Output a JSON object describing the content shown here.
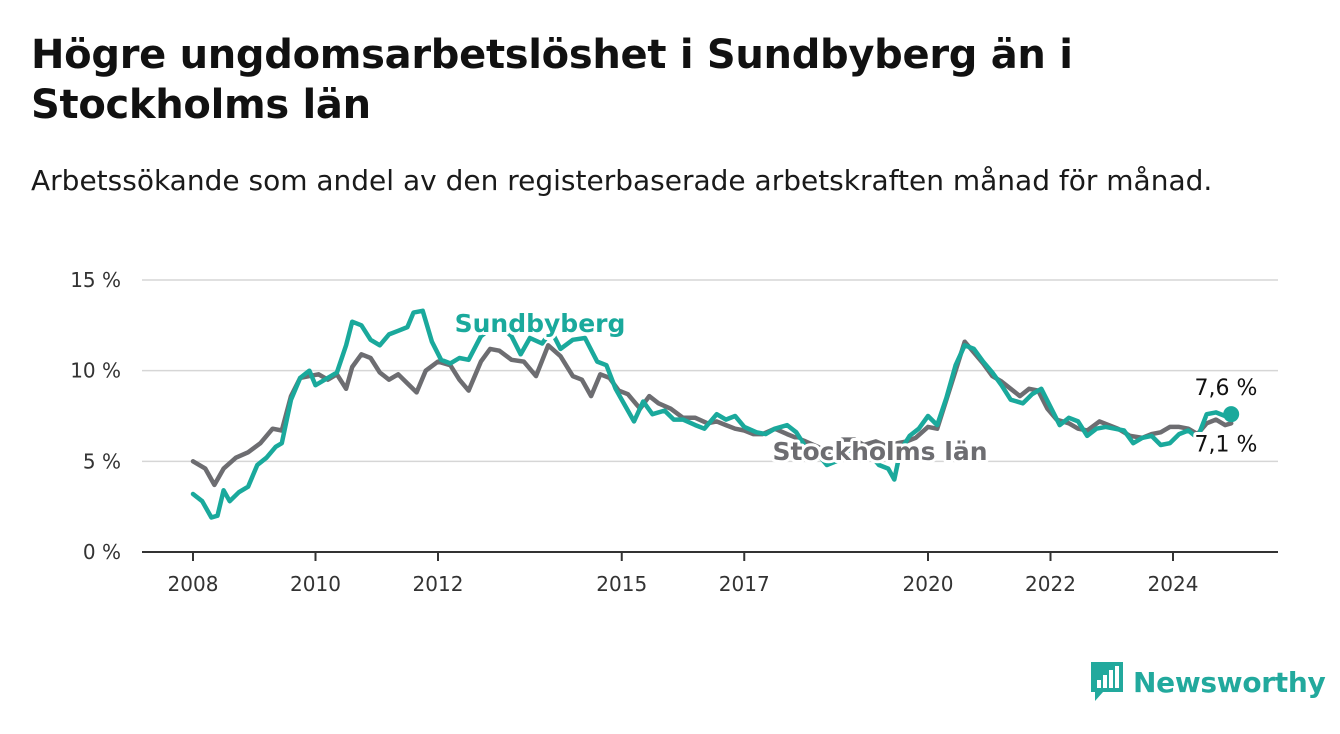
{
  "title": "Högre ungdomsarbetslöshet i Sundbyberg än i Stockholms län",
  "subtitle": "Arbetssökande som andel av den registerbaserade arbetskraften månad för månad.",
  "brand": {
    "name": "Newsworthy",
    "icon": "newsworthy-logo-icon"
  },
  "colors": {
    "sundbyberg": "#1aa99c",
    "stockholm": "#6d6d71",
    "grid": "#d6d6d6",
    "axis": "#333333"
  },
  "chart_data": {
    "type": "line",
    "title": "Högre ungdomsarbetslöshet i Sundbyberg än i Stockholms län",
    "subtitle": "Arbetssökande som andel av den registerbaserade arbetskraften månad för månad.",
    "xlabel": "",
    "ylabel": "",
    "xlim": [
      2008,
      2025.25
    ],
    "ylim": [
      0,
      15
    ],
    "x_ticks": [
      {
        "value": 2008,
        "label": "2008"
      },
      {
        "value": 2010,
        "label": "2010"
      },
      {
        "value": 2012,
        "label": "2012"
      },
      {
        "value": 2015,
        "label": "2015"
      },
      {
        "value": 2017,
        "label": "2017"
      },
      {
        "value": 2020,
        "label": "2020"
      },
      {
        "value": 2022,
        "label": "2022"
      },
      {
        "value": 2024,
        "label": "2024"
      }
    ],
    "y_ticks": [
      {
        "value": 0,
        "label": "0 %"
      },
      {
        "value": 5,
        "label": "5 %"
      },
      {
        "value": 10,
        "label": "10 %"
      },
      {
        "value": 15,
        "label": "15 %"
      }
    ],
    "grid": true,
    "legend": "inline labels",
    "series": [
      {
        "name": "Sundbyberg",
        "color": "#1aa99c",
        "end_label": "7,6 %",
        "points": [
          [
            2008.0,
            3.2
          ],
          [
            2008.15,
            2.8
          ],
          [
            2008.3,
            1.9
          ],
          [
            2008.4,
            2.0
          ],
          [
            2008.5,
            3.4
          ],
          [
            2008.6,
            2.8
          ],
          [
            2008.75,
            3.3
          ],
          [
            2008.9,
            3.6
          ],
          [
            2009.05,
            4.8
          ],
          [
            2009.2,
            5.2
          ],
          [
            2009.35,
            5.8
          ],
          [
            2009.45,
            6.0
          ],
          [
            2009.6,
            8.4
          ],
          [
            2009.75,
            9.6
          ],
          [
            2009.9,
            10.0
          ],
          [
            2010.0,
            9.2
          ],
          [
            2010.2,
            9.6
          ],
          [
            2010.35,
            9.9
          ],
          [
            2010.5,
            11.4
          ],
          [
            2010.6,
            12.7
          ],
          [
            2010.75,
            12.5
          ],
          [
            2010.9,
            11.7
          ],
          [
            2011.05,
            11.4
          ],
          [
            2011.2,
            12.0
          ],
          [
            2011.35,
            12.2
          ],
          [
            2011.5,
            12.4
          ],
          [
            2011.6,
            13.2
          ],
          [
            2011.75,
            13.3
          ],
          [
            2011.9,
            11.6
          ],
          [
            2012.05,
            10.6
          ],
          [
            2012.2,
            10.4
          ],
          [
            2012.35,
            10.7
          ],
          [
            2012.5,
            10.6
          ],
          [
            2012.7,
            11.9
          ],
          [
            2012.85,
            12.3
          ],
          [
            2013.0,
            12.5
          ],
          [
            2013.2,
            11.9
          ],
          [
            2013.35,
            10.9
          ],
          [
            2013.5,
            11.8
          ],
          [
            2013.7,
            11.5
          ],
          [
            2013.85,
            12.2
          ],
          [
            2014.0,
            11.2
          ],
          [
            2014.2,
            11.7
          ],
          [
            2014.4,
            11.8
          ],
          [
            2014.6,
            10.5
          ],
          [
            2014.75,
            10.3
          ],
          [
            2014.9,
            9.0
          ],
          [
            2015.05,
            8.1
          ],
          [
            2015.2,
            7.2
          ],
          [
            2015.35,
            8.3
          ],
          [
            2015.5,
            7.6
          ],
          [
            2015.7,
            7.8
          ],
          [
            2015.85,
            7.3
          ],
          [
            2016.0,
            7.3
          ],
          [
            2016.2,
            7.0
          ],
          [
            2016.35,
            6.8
          ],
          [
            2016.55,
            7.6
          ],
          [
            2016.7,
            7.3
          ],
          [
            2016.85,
            7.5
          ],
          [
            2017.0,
            6.9
          ],
          [
            2017.2,
            6.6
          ],
          [
            2017.35,
            6.5
          ],
          [
            2017.5,
            6.8
          ],
          [
            2017.7,
            7.0
          ],
          [
            2017.85,
            6.6
          ],
          [
            2018.0,
            5.8
          ],
          [
            2018.2,
            5.4
          ],
          [
            2018.35,
            4.8
          ],
          [
            2018.5,
            5.0
          ],
          [
            2018.7,
            5.6
          ],
          [
            2018.9,
            5.8
          ],
          [
            2019.05,
            5.4
          ],
          [
            2019.2,
            4.8
          ],
          [
            2019.35,
            4.6
          ],
          [
            2019.45,
            4.0
          ],
          [
            2019.55,
            5.6
          ],
          [
            2019.7,
            6.4
          ],
          [
            2019.85,
            6.8
          ],
          [
            2020.0,
            7.5
          ],
          [
            2020.15,
            7.0
          ],
          [
            2020.3,
            8.5
          ],
          [
            2020.45,
            10.3
          ],
          [
            2020.6,
            11.4
          ],
          [
            2020.75,
            11.2
          ],
          [
            2020.9,
            10.5
          ],
          [
            2021.05,
            9.9
          ],
          [
            2021.2,
            9.2
          ],
          [
            2021.35,
            8.4
          ],
          [
            2021.55,
            8.2
          ],
          [
            2021.7,
            8.7
          ],
          [
            2021.85,
            9.0
          ],
          [
            2022.0,
            8.0
          ],
          [
            2022.15,
            7.0
          ],
          [
            2022.3,
            7.4
          ],
          [
            2022.45,
            7.2
          ],
          [
            2022.6,
            6.4
          ],
          [
            2022.75,
            6.8
          ],
          [
            2022.9,
            6.9
          ],
          [
            2023.05,
            6.8
          ],
          [
            2023.2,
            6.7
          ],
          [
            2023.35,
            6.0
          ],
          [
            2023.5,
            6.3
          ],
          [
            2023.65,
            6.4
          ],
          [
            2023.8,
            5.9
          ],
          [
            2023.95,
            6.0
          ],
          [
            2024.1,
            6.5
          ],
          [
            2024.25,
            6.7
          ],
          [
            2024.4,
            6.3
          ],
          [
            2024.55,
            7.6
          ],
          [
            2024.7,
            7.7
          ],
          [
            2024.85,
            7.5
          ],
          [
            2024.95,
            7.6
          ]
        ]
      },
      {
        "name": "Stockholms län",
        "color": "#6d6d71",
        "end_label": "7,1 %",
        "points": [
          [
            2008.0,
            5.0
          ],
          [
            2008.2,
            4.6
          ],
          [
            2008.35,
            3.7
          ],
          [
            2008.5,
            4.6
          ],
          [
            2008.7,
            5.2
          ],
          [
            2008.9,
            5.5
          ],
          [
            2009.1,
            6.0
          ],
          [
            2009.3,
            6.8
          ],
          [
            2009.45,
            6.7
          ],
          [
            2009.6,
            8.6
          ],
          [
            2009.75,
            9.6
          ],
          [
            2009.9,
            9.7
          ],
          [
            2010.05,
            9.8
          ],
          [
            2010.2,
            9.5
          ],
          [
            2010.35,
            9.8
          ],
          [
            2010.5,
            9.0
          ],
          [
            2010.6,
            10.2
          ],
          [
            2010.75,
            10.9
          ],
          [
            2010.9,
            10.7
          ],
          [
            2011.05,
            9.9
          ],
          [
            2011.2,
            9.5
          ],
          [
            2011.35,
            9.8
          ],
          [
            2011.5,
            9.3
          ],
          [
            2011.65,
            8.8
          ],
          [
            2011.8,
            10.0
          ],
          [
            2012.0,
            10.5
          ],
          [
            2012.2,
            10.3
          ],
          [
            2012.35,
            9.5
          ],
          [
            2012.5,
            8.9
          ],
          [
            2012.7,
            10.5
          ],
          [
            2012.85,
            11.2
          ],
          [
            2013.0,
            11.1
          ],
          [
            2013.2,
            10.6
          ],
          [
            2013.4,
            10.5
          ],
          [
            2013.6,
            9.7
          ],
          [
            2013.8,
            11.4
          ],
          [
            2014.0,
            10.8
          ],
          [
            2014.2,
            9.7
          ],
          [
            2014.35,
            9.5
          ],
          [
            2014.5,
            8.6
          ],
          [
            2014.65,
            9.8
          ],
          [
            2014.8,
            9.6
          ],
          [
            2014.95,
            8.9
          ],
          [
            2015.1,
            8.7
          ],
          [
            2015.3,
            7.9
          ],
          [
            2015.45,
            8.6
          ],
          [
            2015.6,
            8.2
          ],
          [
            2015.8,
            7.9
          ],
          [
            2016.0,
            7.4
          ],
          [
            2016.2,
            7.4
          ],
          [
            2016.4,
            7.1
          ],
          [
            2016.55,
            7.2
          ],
          [
            2016.7,
            7.0
          ],
          [
            2016.85,
            6.8
          ],
          [
            2017.0,
            6.7
          ],
          [
            2017.15,
            6.5
          ],
          [
            2017.3,
            6.5
          ],
          [
            2017.5,
            6.8
          ],
          [
            2017.7,
            6.5
          ],
          [
            2017.85,
            6.3
          ],
          [
            2018.0,
            6.1
          ],
          [
            2018.2,
            5.8
          ],
          [
            2018.4,
            5.4
          ],
          [
            2018.6,
            6.2
          ],
          [
            2018.8,
            6.2
          ],
          [
            2018.95,
            5.9
          ],
          [
            2019.15,
            6.1
          ],
          [
            2019.35,
            5.8
          ],
          [
            2019.5,
            6.0
          ],
          [
            2019.65,
            6.1
          ],
          [
            2019.8,
            6.3
          ],
          [
            2020.0,
            6.9
          ],
          [
            2020.15,
            6.8
          ],
          [
            2020.3,
            8.4
          ],
          [
            2020.45,
            10.0
          ],
          [
            2020.6,
            11.6
          ],
          [
            2020.75,
            11.0
          ],
          [
            2020.9,
            10.4
          ],
          [
            2021.05,
            9.7
          ],
          [
            2021.2,
            9.4
          ],
          [
            2021.35,
            9.0
          ],
          [
            2021.5,
            8.6
          ],
          [
            2021.65,
            9.0
          ],
          [
            2021.8,
            8.9
          ],
          [
            2021.95,
            7.9
          ],
          [
            2022.1,
            7.3
          ],
          [
            2022.3,
            7.1
          ],
          [
            2022.45,
            6.8
          ],
          [
            2022.6,
            6.7
          ],
          [
            2022.8,
            7.2
          ],
          [
            2022.95,
            7.0
          ],
          [
            2023.1,
            6.8
          ],
          [
            2023.3,
            6.4
          ],
          [
            2023.5,
            6.3
          ],
          [
            2023.65,
            6.5
          ],
          [
            2023.8,
            6.6
          ],
          [
            2023.95,
            6.9
          ],
          [
            2024.1,
            6.9
          ],
          [
            2024.25,
            6.8
          ],
          [
            2024.4,
            6.5
          ],
          [
            2024.55,
            7.1
          ],
          [
            2024.7,
            7.3
          ],
          [
            2024.85,
            7.0
          ],
          [
            2024.95,
            7.1
          ]
        ]
      }
    ]
  }
}
